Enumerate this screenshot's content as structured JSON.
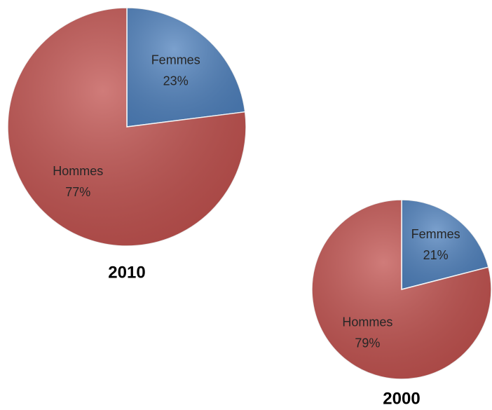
{
  "chart_data": [
    {
      "type": "pie",
      "title": "2010",
      "categories": [
        "Femmes",
        "Hommes"
      ],
      "values": [
        23,
        77
      ],
      "value_labels": [
        "23%",
        "77%"
      ],
      "colors": [
        "#4f81bd",
        "#c0504d"
      ]
    },
    {
      "type": "pie",
      "title": "2000",
      "categories": [
        "Femmes",
        "Hommes"
      ],
      "values": [
        21,
        79
      ],
      "value_labels": [
        "21%",
        "79%"
      ],
      "colors": [
        "#4f81bd",
        "#c0504d"
      ]
    }
  ]
}
